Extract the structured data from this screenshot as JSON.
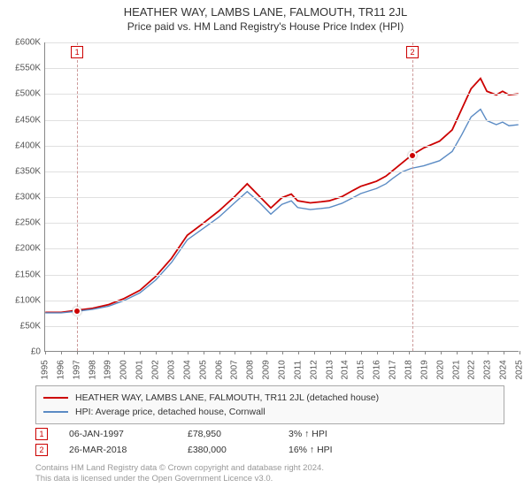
{
  "title": {
    "main": "HEATHER WAY, LAMBS LANE, FALMOUTH, TR11 2JL",
    "sub": "Price paid vs. HM Land Registry's House Price Index (HPI)"
  },
  "chart": {
    "type": "line",
    "background_color": "#ffffff",
    "grid_color": "#e0e0e0",
    "axis_color": "#888888",
    "tick_fontsize": 10,
    "tick_color": "#555555",
    "x": {
      "min": 1995,
      "max": 2025,
      "step": 1,
      "labels": [
        "1995",
        "1996",
        "1997",
        "1998",
        "1999",
        "2000",
        "2001",
        "2002",
        "2003",
        "2004",
        "2005",
        "2006",
        "2007",
        "2008",
        "2009",
        "2010",
        "2011",
        "2012",
        "2013",
        "2014",
        "2015",
        "2016",
        "2017",
        "2018",
        "2019",
        "2020",
        "2021",
        "2022",
        "2023",
        "2024",
        "2025"
      ]
    },
    "y": {
      "min": 0,
      "max": 600000,
      "step": 50000,
      "prefix": "£",
      "suffix": "K",
      "labels": [
        "£0",
        "£50K",
        "£100K",
        "£150K",
        "£200K",
        "£250K",
        "£300K",
        "£350K",
        "£400K",
        "£450K",
        "£500K",
        "£550K",
        "£600K"
      ]
    },
    "series": [
      {
        "id": "property",
        "label": "HEATHER WAY, LAMBS LANE, FALMOUTH, TR11 2JL (detached house)",
        "color": "#cc0000",
        "line_width": 1.8,
        "points": [
          [
            1995.0,
            75000
          ],
          [
            1996.0,
            75000
          ],
          [
            1997.0,
            79000
          ],
          [
            1998.0,
            83000
          ],
          [
            1999.0,
            90000
          ],
          [
            2000.0,
            102000
          ],
          [
            2001.0,
            118000
          ],
          [
            2002.0,
            145000
          ],
          [
            2003.0,
            180000
          ],
          [
            2004.0,
            225000
          ],
          [
            2005.0,
            248000
          ],
          [
            2006.0,
            272000
          ],
          [
            2007.0,
            300000
          ],
          [
            2007.8,
            325000
          ],
          [
            2008.6,
            300000
          ],
          [
            2009.3,
            278000
          ],
          [
            2010.0,
            298000
          ],
          [
            2010.6,
            305000
          ],
          [
            2011.0,
            292000
          ],
          [
            2011.8,
            288000
          ],
          [
            2012.5,
            290000
          ],
          [
            2013.0,
            292000
          ],
          [
            2013.8,
            300000
          ],
          [
            2014.5,
            312000
          ],
          [
            2015.0,
            320000
          ],
          [
            2015.6,
            326000
          ],
          [
            2016.0,
            330000
          ],
          [
            2016.6,
            340000
          ],
          [
            2017.0,
            350000
          ],
          [
            2017.6,
            365000
          ],
          [
            2018.2,
            380000
          ],
          [
            2019.0,
            395000
          ],
          [
            2020.0,
            408000
          ],
          [
            2020.8,
            430000
          ],
          [
            2021.4,
            470000
          ],
          [
            2022.0,
            510000
          ],
          [
            2022.6,
            530000
          ],
          [
            2023.0,
            505000
          ],
          [
            2023.6,
            498000
          ],
          [
            2024.0,
            505000
          ],
          [
            2024.4,
            498000
          ],
          [
            2025.0,
            500000
          ]
        ]
      },
      {
        "id": "hpi",
        "label": "HPI: Average price, detached house, Cornwall",
        "color": "#5b8bc4",
        "line_width": 1.4,
        "points": [
          [
            1995.0,
            74000
          ],
          [
            1996.0,
            74000
          ],
          [
            1997.0,
            77000
          ],
          [
            1998.0,
            81000
          ],
          [
            1999.0,
            87000
          ],
          [
            2000.0,
            98000
          ],
          [
            2001.0,
            113000
          ],
          [
            2002.0,
            138000
          ],
          [
            2003.0,
            172000
          ],
          [
            2004.0,
            216000
          ],
          [
            2005.0,
            238000
          ],
          [
            2006.0,
            260000
          ],
          [
            2007.0,
            288000
          ],
          [
            2007.8,
            310000
          ],
          [
            2008.6,
            288000
          ],
          [
            2009.3,
            266000
          ],
          [
            2010.0,
            285000
          ],
          [
            2010.6,
            292000
          ],
          [
            2011.0,
            279000
          ],
          [
            2011.8,
            275000
          ],
          [
            2012.5,
            277000
          ],
          [
            2013.0,
            279000
          ],
          [
            2013.8,
            287000
          ],
          [
            2014.5,
            298000
          ],
          [
            2015.0,
            306000
          ],
          [
            2015.6,
            312000
          ],
          [
            2016.0,
            316000
          ],
          [
            2016.6,
            325000
          ],
          [
            2017.0,
            335000
          ],
          [
            2017.6,
            348000
          ],
          [
            2018.2,
            355000
          ],
          [
            2019.0,
            360000
          ],
          [
            2020.0,
            370000
          ],
          [
            2020.8,
            388000
          ],
          [
            2021.4,
            420000
          ],
          [
            2022.0,
            455000
          ],
          [
            2022.6,
            470000
          ],
          [
            2023.0,
            448000
          ],
          [
            2023.6,
            440000
          ],
          [
            2024.0,
            445000
          ],
          [
            2024.4,
            438000
          ],
          [
            2025.0,
            440000
          ]
        ]
      }
    ],
    "markers": [
      {
        "flag": "1",
        "x": 1997.02,
        "y": 78950,
        "color": "#cc0000"
      },
      {
        "flag": "2",
        "x": 2018.23,
        "y": 380000,
        "color": "#cc0000"
      }
    ]
  },
  "legend": {
    "items": [
      {
        "series": "property"
      },
      {
        "series": "hpi"
      }
    ]
  },
  "datapoints": [
    {
      "flag": "1",
      "date": "06-JAN-1997",
      "price": "£78,950",
      "pct": "3% ↑ HPI"
    },
    {
      "flag": "2",
      "date": "26-MAR-2018",
      "price": "£380,000",
      "pct": "16% ↑ HPI"
    }
  ],
  "license": {
    "line1": "Contains HM Land Registry data © Crown copyright and database right 2024.",
    "line2": "This data is licensed under the Open Government Licence v3.0."
  }
}
